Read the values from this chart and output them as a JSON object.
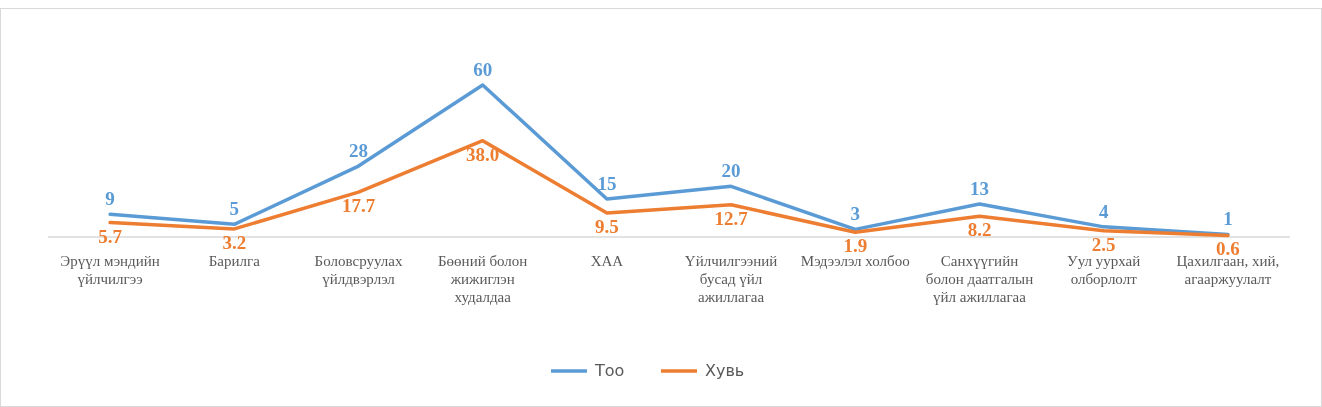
{
  "chart_data": {
    "type": "line",
    "categories": [
      "Эрүүл мэндийн үйлчилгээ",
      "Барилга",
      "Боловсруулах үйлдвэрлэл",
      "Бөөний болон жижиглэн худалдаа",
      "ХАА",
      "Үйлчилгээний бусад үйл ажиллагаа",
      "Мэдээлэл холбоо",
      "Санхүүгийн болон даатгалын үйл ажиллагаа",
      "Уул уурхай олборлолт",
      "Цахилгаан, хий, агааржуулалт"
    ],
    "series": [
      {
        "name": "Тоо",
        "color": "#5b9bd5",
        "values": [
          9,
          5,
          28,
          60,
          15,
          20,
          3,
          13,
          4,
          1
        ]
      },
      {
        "name": "Хувь",
        "color": "#ed7d31",
        "values": [
          5.7,
          3.2,
          17.7,
          38.0,
          9.5,
          12.7,
          1.9,
          8.2,
          2.5,
          0.6
        ],
        "value_labels": [
          "5.7",
          "3.2",
          "17.7",
          "38.0",
          "9.5",
          "12.7",
          "1.9",
          "8.2",
          "2.5",
          "0.6"
        ]
      }
    ],
    "data_labels": true,
    "legend": "bottom",
    "grid": false,
    "tick_labels": "x",
    "marker": "none"
  }
}
